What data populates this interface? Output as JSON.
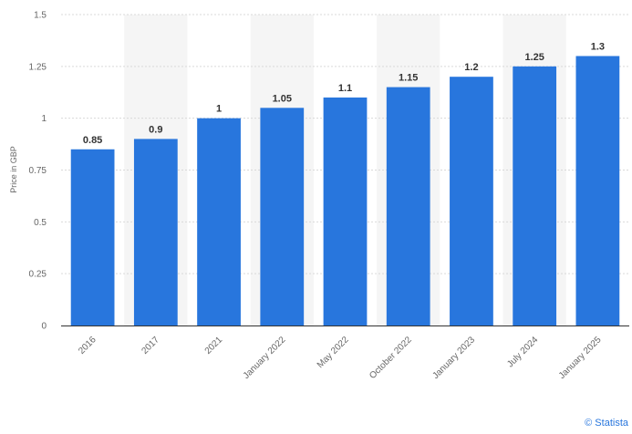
{
  "chart_data": {
    "type": "bar",
    "title": "",
    "xlabel": "",
    "ylabel": "Price in GBP",
    "ylim": [
      0,
      1.5
    ],
    "yticks": [
      "0",
      "0.25",
      "0.5",
      "0.75",
      "1",
      "1.25",
      "1.5"
    ],
    "categories": [
      "2016",
      "2017",
      "2021",
      "January 2022",
      "May 2022",
      "October 2022",
      "January 2023",
      "July 2024",
      "January 2025"
    ],
    "values": [
      0.85,
      0.9,
      1,
      1.05,
      1.1,
      1.15,
      1.2,
      1.25,
      1.3
    ],
    "value_labels": [
      "0.85",
      "0.9",
      "1",
      "1.05",
      "1.1",
      "1.15",
      "1.2",
      "1.25",
      "1.3"
    ],
    "grid": true,
    "bar_color": "#2876dd"
  },
  "credit": "© Statista"
}
